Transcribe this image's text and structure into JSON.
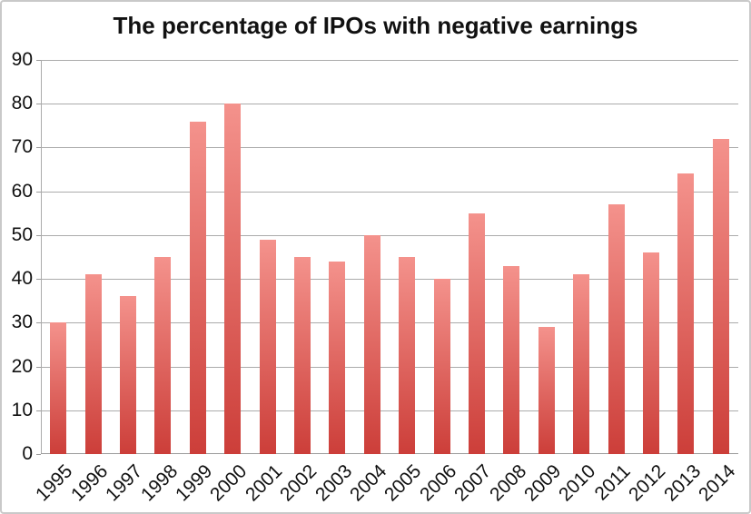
{
  "figure": {
    "kind": "static-chart-image"
  },
  "colors": {
    "background": "#ffffff",
    "figure_border": "#c9c9c9",
    "text": "#111111",
    "gridline": "#ababab",
    "axis_line": "#9b9b9b",
    "bar_gradient_top": "#f4928c",
    "bar_gradient_bottom": "#cc3e39"
  },
  "chart_data": {
    "type": "bar",
    "title": "The percentage of IPOs with negative earnings",
    "categories": [
      "1995",
      "1996",
      "1997",
      "1998",
      "1999",
      "2000",
      "2001",
      "2002",
      "2003",
      "2004",
      "2005",
      "2006",
      "2007",
      "2008",
      "2009",
      "2010",
      "2011",
      "2012",
      "2013",
      "2014"
    ],
    "values": [
      30,
      41,
      36,
      45,
      76,
      80,
      49,
      45,
      44,
      50,
      45,
      40,
      55,
      43,
      29,
      41,
      57,
      46,
      64,
      72
    ],
    "xlabel": "",
    "ylabel": "",
    "ylim": [
      0,
      90
    ],
    "yticks": [
      0,
      10,
      20,
      30,
      40,
      50,
      60,
      70,
      80,
      90
    ],
    "grid": true,
    "legend": false,
    "bar_value_labels": false,
    "x_tick_rotation_deg": 45
  }
}
